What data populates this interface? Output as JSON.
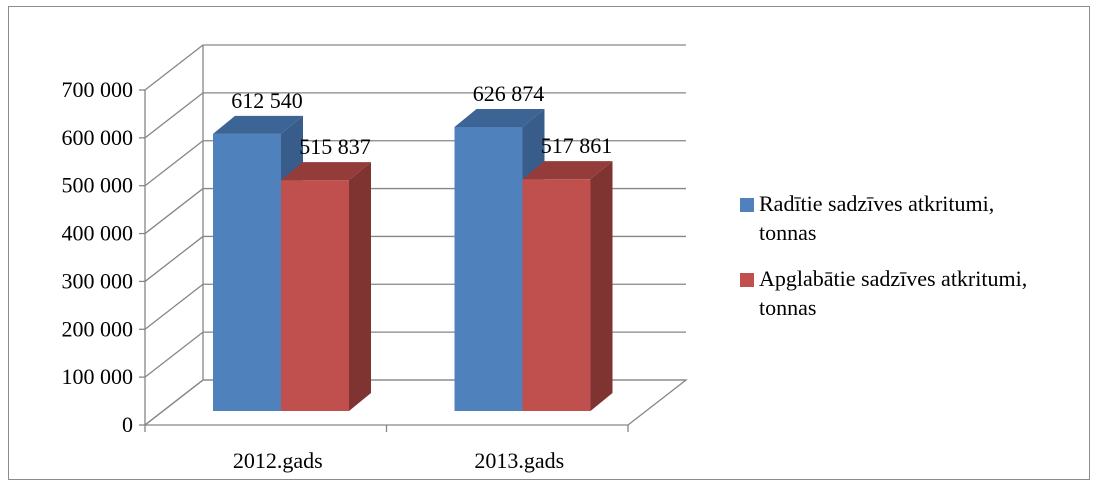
{
  "chart_data": {
    "type": "bar",
    "title": "",
    "xlabel": "",
    "ylabel": "",
    "categories": [
      "2012.gads",
      "2013.gads"
    ],
    "series": [
      {
        "name": "Radītie sadzīves atkritumi, tonnas",
        "legend_lines": [
          "Radītie sadzīves atkritumi,",
          "tonnas"
        ],
        "values": [
          612540,
          626874
        ],
        "value_labels": [
          "612 540",
          "626 874"
        ],
        "color": "#4F81BD",
        "side_color": "#385D8A",
        "top_color": "#3C6495"
      },
      {
        "name": "Apglabātie sadzīves atkritumi, tonnas",
        "legend_lines": [
          "Apglabātie sadzīves atkritumi,",
          "tonnas"
        ],
        "values": [
          515837,
          517861
        ],
        "value_labels": [
          "515 837",
          "517 861"
        ],
        "color": "#C0504D",
        "side_color": "#7F3431",
        "top_color": "#943C39"
      }
    ],
    "ylim": [
      0,
      700000
    ],
    "y_ticks": [
      0,
      100000,
      200000,
      300000,
      400000,
      500000,
      600000,
      700000
    ],
    "y_tick_labels": [
      "0",
      "100 000",
      "200 000",
      "300 000",
      "400 000",
      "500 000",
      "600 000",
      "700 000"
    ],
    "grid": true,
    "style": "3d-clustered-column",
    "legend_position": "right"
  }
}
